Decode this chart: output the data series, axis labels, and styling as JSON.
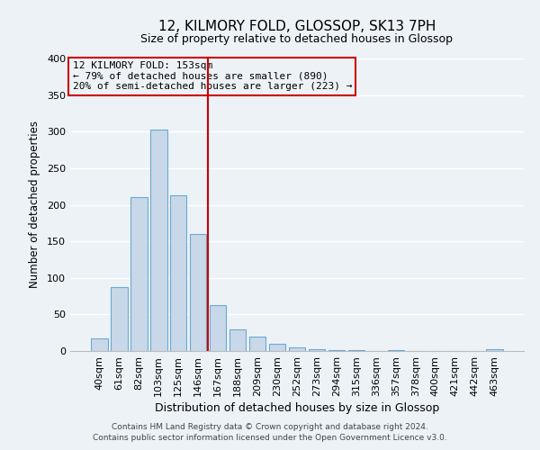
{
  "title": "12, KILMORY FOLD, GLOSSOP, SK13 7PH",
  "subtitle": "Size of property relative to detached houses in Glossop",
  "xlabel": "Distribution of detached houses by size in Glossop",
  "ylabel": "Number of detached properties",
  "footnote1": "Contains HM Land Registry data © Crown copyright and database right 2024.",
  "footnote2": "Contains public sector information licensed under the Open Government Licence v3.0.",
  "bar_labels": [
    "40sqm",
    "61sqm",
    "82sqm",
    "103sqm",
    "125sqm",
    "146sqm",
    "167sqm",
    "188sqm",
    "209sqm",
    "230sqm",
    "252sqm",
    "273sqm",
    "294sqm",
    "315sqm",
    "336sqm",
    "357sqm",
    "378sqm",
    "400sqm",
    "421sqm",
    "442sqm",
    "463sqm"
  ],
  "bar_values": [
    17,
    88,
    210,
    303,
    213,
    160,
    63,
    30,
    20,
    10,
    5,
    3,
    1,
    1,
    0,
    1,
    0,
    0,
    0,
    0,
    2
  ],
  "bar_color": "#c8d8e8",
  "bar_edge_color": "#6aaad4",
  "ylim": [
    0,
    400
  ],
  "yticks": [
    0,
    50,
    100,
    150,
    200,
    250,
    300,
    350,
    400
  ],
  "vline_x": 5.5,
  "vline_color": "#cc0000",
  "annotation_title": "12 KILMORY FOLD: 153sqm",
  "annotation_line1": "← 79% of detached houses are smaller (890)",
  "annotation_line2": "20% of semi-detached houses are larger (223) →",
  "box_color": "#cc0000",
  "background_color": "#edf2f7",
  "grid_color": "#ffffff",
  "title_fontsize": 11,
  "subtitle_fontsize": 9,
  "ylabel_fontsize": 8.5,
  "xlabel_fontsize": 9,
  "tick_fontsize": 8,
  "annot_fontsize": 8,
  "footer_fontsize": 6.5
}
